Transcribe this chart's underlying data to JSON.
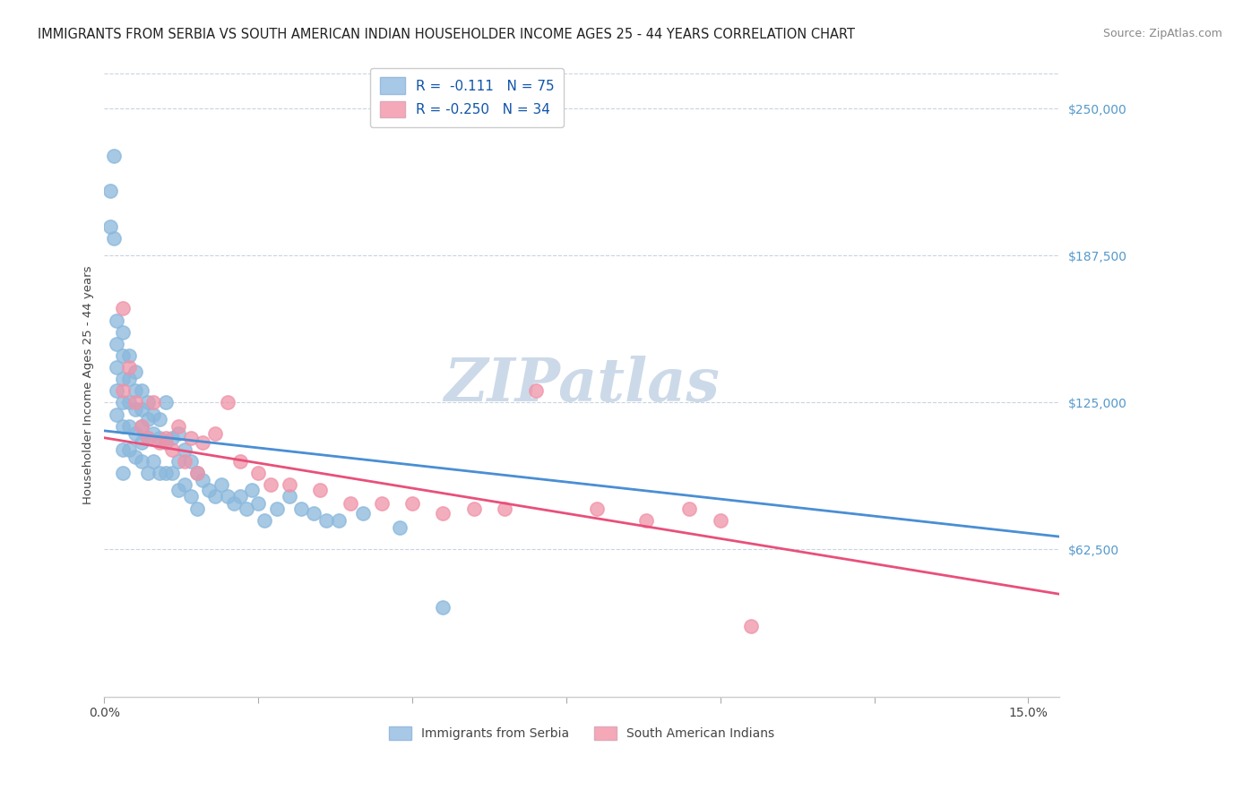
{
  "title": "IMMIGRANTS FROM SERBIA VS SOUTH AMERICAN INDIAN HOUSEHOLDER INCOME AGES 25 - 44 YEARS CORRELATION CHART",
  "source": "Source: ZipAtlas.com",
  "ylabel": "Householder Income Ages 25 - 44 years",
  "ytick_labels": [
    "$62,500",
    "$125,000",
    "$187,500",
    "$250,000"
  ],
  "ytick_values": [
    62500,
    125000,
    187500,
    250000
  ],
  "ymin": 0,
  "ymax": 265000,
  "xmin": 0.0,
  "xmax": 0.155,
  "legend_serbia_r": "-0.111",
  "legend_serbia_n": "75",
  "legend_indian_r": "-0.250",
  "legend_indian_n": "34",
  "serbia_scatter_color": "#8ab8dc",
  "india_scatter_color": "#f093a8",
  "serbia_line_color": "#4a8fd4",
  "india_line_color": "#e8507a",
  "watermark_color": "#ccd9e8",
  "grid_color": "#c8d4e0",
  "background_color": "#ffffff",
  "legend_box_serbia": "#a8c8e8",
  "legend_box_india": "#f4a8b8",
  "title_color": "#222222",
  "source_color": "#888888",
  "ytick_color": "#5599cc",
  "xtick_color": "#444444",
  "ylabel_color": "#444444",
  "serbia_points_x": [
    0.001,
    0.001,
    0.0015,
    0.0015,
    0.002,
    0.002,
    0.002,
    0.002,
    0.002,
    0.003,
    0.003,
    0.003,
    0.003,
    0.003,
    0.003,
    0.003,
    0.004,
    0.004,
    0.004,
    0.004,
    0.004,
    0.005,
    0.005,
    0.005,
    0.005,
    0.005,
    0.006,
    0.006,
    0.006,
    0.006,
    0.006,
    0.007,
    0.007,
    0.007,
    0.007,
    0.008,
    0.008,
    0.008,
    0.009,
    0.009,
    0.009,
    0.01,
    0.01,
    0.01,
    0.011,
    0.011,
    0.012,
    0.012,
    0.012,
    0.013,
    0.013,
    0.014,
    0.014,
    0.015,
    0.015,
    0.016,
    0.017,
    0.018,
    0.019,
    0.02,
    0.021,
    0.022,
    0.023,
    0.024,
    0.025,
    0.026,
    0.028,
    0.03,
    0.032,
    0.034,
    0.036,
    0.038,
    0.042,
    0.048,
    0.055
  ],
  "serbia_points_y": [
    215000,
    200000,
    230000,
    195000,
    160000,
    150000,
    140000,
    130000,
    120000,
    155000,
    145000,
    135000,
    125000,
    115000,
    105000,
    95000,
    145000,
    135000,
    125000,
    115000,
    105000,
    138000,
    130000,
    122000,
    112000,
    102000,
    130000,
    122000,
    115000,
    108000,
    100000,
    125000,
    118000,
    110000,
    95000,
    120000,
    112000,
    100000,
    118000,
    110000,
    95000,
    125000,
    108000,
    95000,
    110000,
    95000,
    112000,
    100000,
    88000,
    105000,
    90000,
    100000,
    85000,
    95000,
    80000,
    92000,
    88000,
    85000,
    90000,
    85000,
    82000,
    85000,
    80000,
    88000,
    82000,
    75000,
    80000,
    85000,
    80000,
    78000,
    75000,
    75000,
    78000,
    72000,
    38000
  ],
  "india_points_x": [
    0.003,
    0.003,
    0.004,
    0.005,
    0.006,
    0.007,
    0.008,
    0.009,
    0.01,
    0.011,
    0.012,
    0.013,
    0.014,
    0.015,
    0.016,
    0.018,
    0.02,
    0.022,
    0.025,
    0.027,
    0.03,
    0.035,
    0.04,
    0.045,
    0.05,
    0.055,
    0.06,
    0.065,
    0.07,
    0.08,
    0.088,
    0.095,
    0.1,
    0.105
  ],
  "india_points_y": [
    165000,
    130000,
    140000,
    125000,
    115000,
    110000,
    125000,
    108000,
    110000,
    105000,
    115000,
    100000,
    110000,
    95000,
    108000,
    112000,
    125000,
    100000,
    95000,
    90000,
    90000,
    88000,
    82000,
    82000,
    82000,
    78000,
    80000,
    80000,
    130000,
    80000,
    75000,
    80000,
    75000,
    30000
  ],
  "title_fontsize": 10.5,
  "source_fontsize": 9,
  "axis_label_fontsize": 9.5,
  "tick_fontsize": 10,
  "legend_fontsize": 11,
  "dot_size": 120,
  "dot_alpha": 0.75,
  "line_width": 2.0
}
